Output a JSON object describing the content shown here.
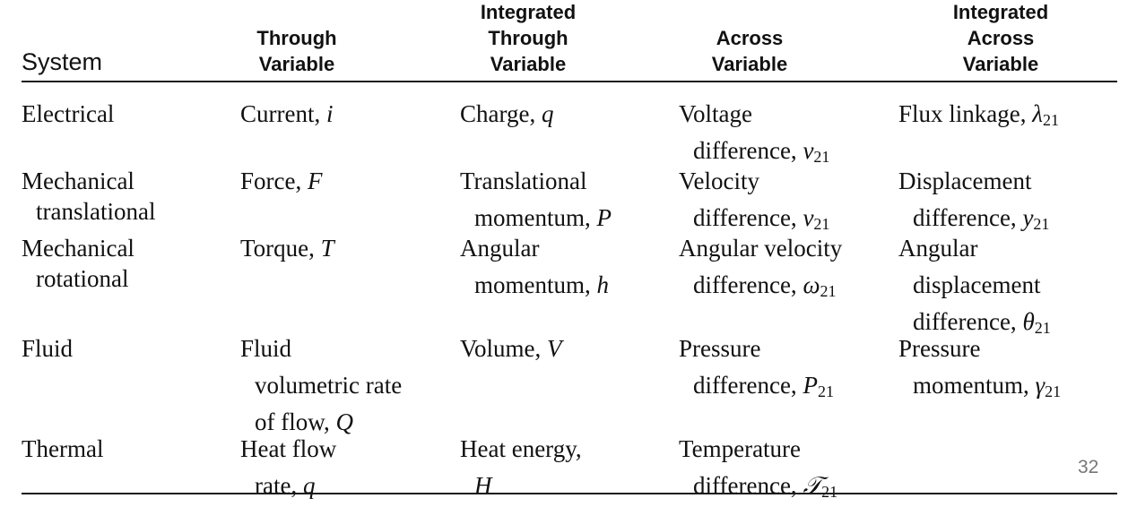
{
  "headers": {
    "system": "System",
    "through": [
      "Through",
      "Variable"
    ],
    "int_through": [
      "Integrated",
      "Through",
      "Variable"
    ],
    "across": [
      "Across",
      "Variable"
    ],
    "int_across": [
      "Integrated",
      "Across",
      "Variable"
    ]
  },
  "rows": [
    {
      "system": [
        "Electrical"
      ],
      "through": [
        [
          "Current, ",
          "i",
          ""
        ]
      ],
      "int_through": [
        [
          "Charge, ",
          "q",
          ""
        ]
      ],
      "across": [
        [
          "Voltage",
          "",
          ""
        ],
        [
          "difference, ",
          "v",
          "21"
        ]
      ],
      "int_across": [
        [
          "Flux linkage, ",
          "λ",
          "21"
        ]
      ]
    },
    {
      "system": [
        "Mechanical",
        "translational"
      ],
      "through": [
        [
          "Force, ",
          "F",
          ""
        ]
      ],
      "int_through": [
        [
          "Translational",
          "",
          ""
        ],
        [
          "momentum, ",
          "P",
          ""
        ]
      ],
      "across": [
        [
          "Velocity",
          "",
          ""
        ],
        [
          "difference, ",
          "v",
          "21"
        ]
      ],
      "int_across": [
        [
          "Displacement",
          "",
          ""
        ],
        [
          "difference, ",
          "y",
          "21"
        ]
      ]
    },
    {
      "system": [
        "Mechanical",
        "rotational"
      ],
      "through": [
        [
          "Torque, ",
          "T",
          ""
        ]
      ],
      "int_through": [
        [
          "Angular",
          "",
          ""
        ],
        [
          "momentum, ",
          "h",
          ""
        ]
      ],
      "across": [
        [
          "Angular velocity",
          "",
          ""
        ],
        [
          "difference, ",
          "ω",
          "21"
        ]
      ],
      "int_across": [
        [
          "Angular",
          "",
          ""
        ],
        [
          "displacement",
          "",
          ""
        ],
        [
          "difference, ",
          "θ",
          "21"
        ]
      ]
    },
    {
      "system": [
        "Fluid"
      ],
      "through": [
        [
          "Fluid",
          "",
          ""
        ],
        [
          "volumetric rate",
          "",
          ""
        ],
        [
          "of flow, ",
          "Q",
          ""
        ]
      ],
      "int_through": [
        [
          "Volume, ",
          "V",
          ""
        ]
      ],
      "across": [
        [
          "Pressure",
          "",
          ""
        ],
        [
          "difference, ",
          "P",
          "21"
        ]
      ],
      "int_across": [
        [
          "Pressure",
          "",
          ""
        ],
        [
          "momentum, ",
          "γ",
          "21"
        ]
      ]
    },
    {
      "system": [
        "Thermal"
      ],
      "through": [
        [
          "Heat flow",
          "",
          ""
        ],
        [
          "rate, ",
          "q",
          ""
        ]
      ],
      "int_through": [
        [
          "Heat energy,",
          "",
          ""
        ],
        [
          "",
          "H",
          ""
        ]
      ],
      "across": [
        [
          "Temperature",
          "",
          ""
        ],
        [
          "difference, ",
          "𝒯",
          "21"
        ]
      ],
      "int_across": []
    }
  ],
  "page_number": "32"
}
